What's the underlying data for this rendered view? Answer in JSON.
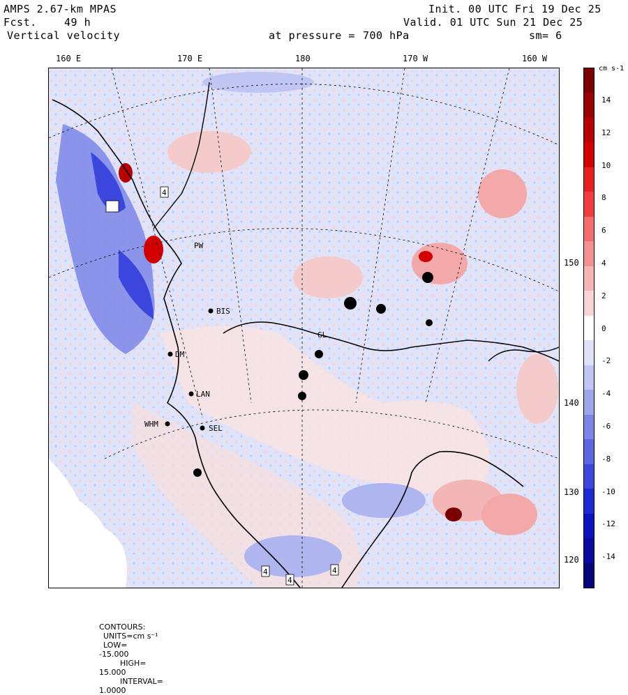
{
  "header": {
    "model": "AMPS 2.67-km MPAS",
    "fcst_label": "Fcst.",
    "fcst_value": "49 h",
    "field": "Vertical velocity",
    "init": "Init. 00 UTC Fri 19 Dec 25",
    "valid": "Valid. 01 UTC Sun 21 Dec 25",
    "pressure_label": "at pressure =",
    "pressure_value": "700 hPa",
    "smoothing": "sm= 6"
  },
  "longitude_labels": [
    "160 E",
    "170 E",
    "180",
    "170 W",
    "160 W"
  ],
  "latitude_labels": [
    "150 W",
    "140 W",
    "130 W",
    "120 W"
  ],
  "stations": [
    {
      "id": "BIS"
    },
    {
      "id": "DM"
    },
    {
      "id": "LAN"
    },
    {
      "id": "SEL"
    },
    {
      "id": "WHM"
    },
    {
      "id": "PW"
    },
    {
      "id": "GL"
    }
  ],
  "box_labels": [
    "4",
    "4",
    "4",
    "4"
  ],
  "colorbar": {
    "units": "cm s-1",
    "ticks": [
      "14",
      "12",
      "10",
      "8",
      "6",
      "4",
      "2",
      "0",
      "-2",
      "-4",
      "-6",
      "-8",
      "-10",
      "-12",
      "-14"
    ],
    "colors": [
      "#7a0000",
      "#9a0000",
      "#b80000",
      "#d40000",
      "#e81e1e",
      "#f23c3c",
      "#f56a6a",
      "#f59090",
      "#f7b4b4",
      "#f9d4d4",
      "#ffffff",
      "#dfe2fa",
      "#c0c6f4",
      "#9ea6ee",
      "#7b86e8",
      "#5a66e2",
      "#3a46dc",
      "#1e28d4",
      "#0c12c0",
      "#080aa0",
      "#06067c"
    ]
  },
  "footer": {
    "contours_label": "CONTOURS:",
    "units_label": "UNITS=cm s⁻¹",
    "low_label": "LOW=",
    "low_value": "-15.000",
    "high_label": "HIGH=",
    "high_value": "15.000",
    "interval_label": "INTERVAL=",
    "interval_value": "1.0000"
  }
}
